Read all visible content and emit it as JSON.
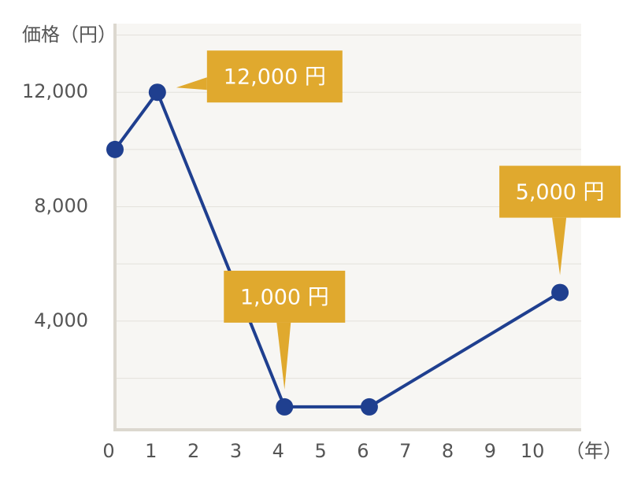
{
  "chart_data": {
    "type": "line",
    "y_label": "価格（円）",
    "x_unit_label": "（年）",
    "x": [
      0,
      1,
      4,
      6,
      10.5
    ],
    "series": [
      {
        "color": "#1f3f8f",
        "values": [
          10000,
          12000,
          1000,
          1000,
          5000
        ],
        "value_labels": [
          null,
          "12,000 円",
          "1,000 円",
          null,
          "5,000 円"
        ]
      }
    ],
    "xlim": [
      0,
      11
    ],
    "xticks": [
      0,
      1,
      2,
      3,
      4,
      5,
      6,
      7,
      8,
      9,
      10
    ],
    "ylim": [
      200,
      14400
    ],
    "yticks": [
      {
        "value": 4000,
        "label": "4,000"
      },
      {
        "value": 8000,
        "label": "8,000"
      },
      {
        "value": 12000,
        "label": "12,000"
      }
    ],
    "minor_yticks": [
      2000,
      6000,
      10000,
      14000
    ],
    "grid": true,
    "callout_color": "#e0a92e"
  }
}
